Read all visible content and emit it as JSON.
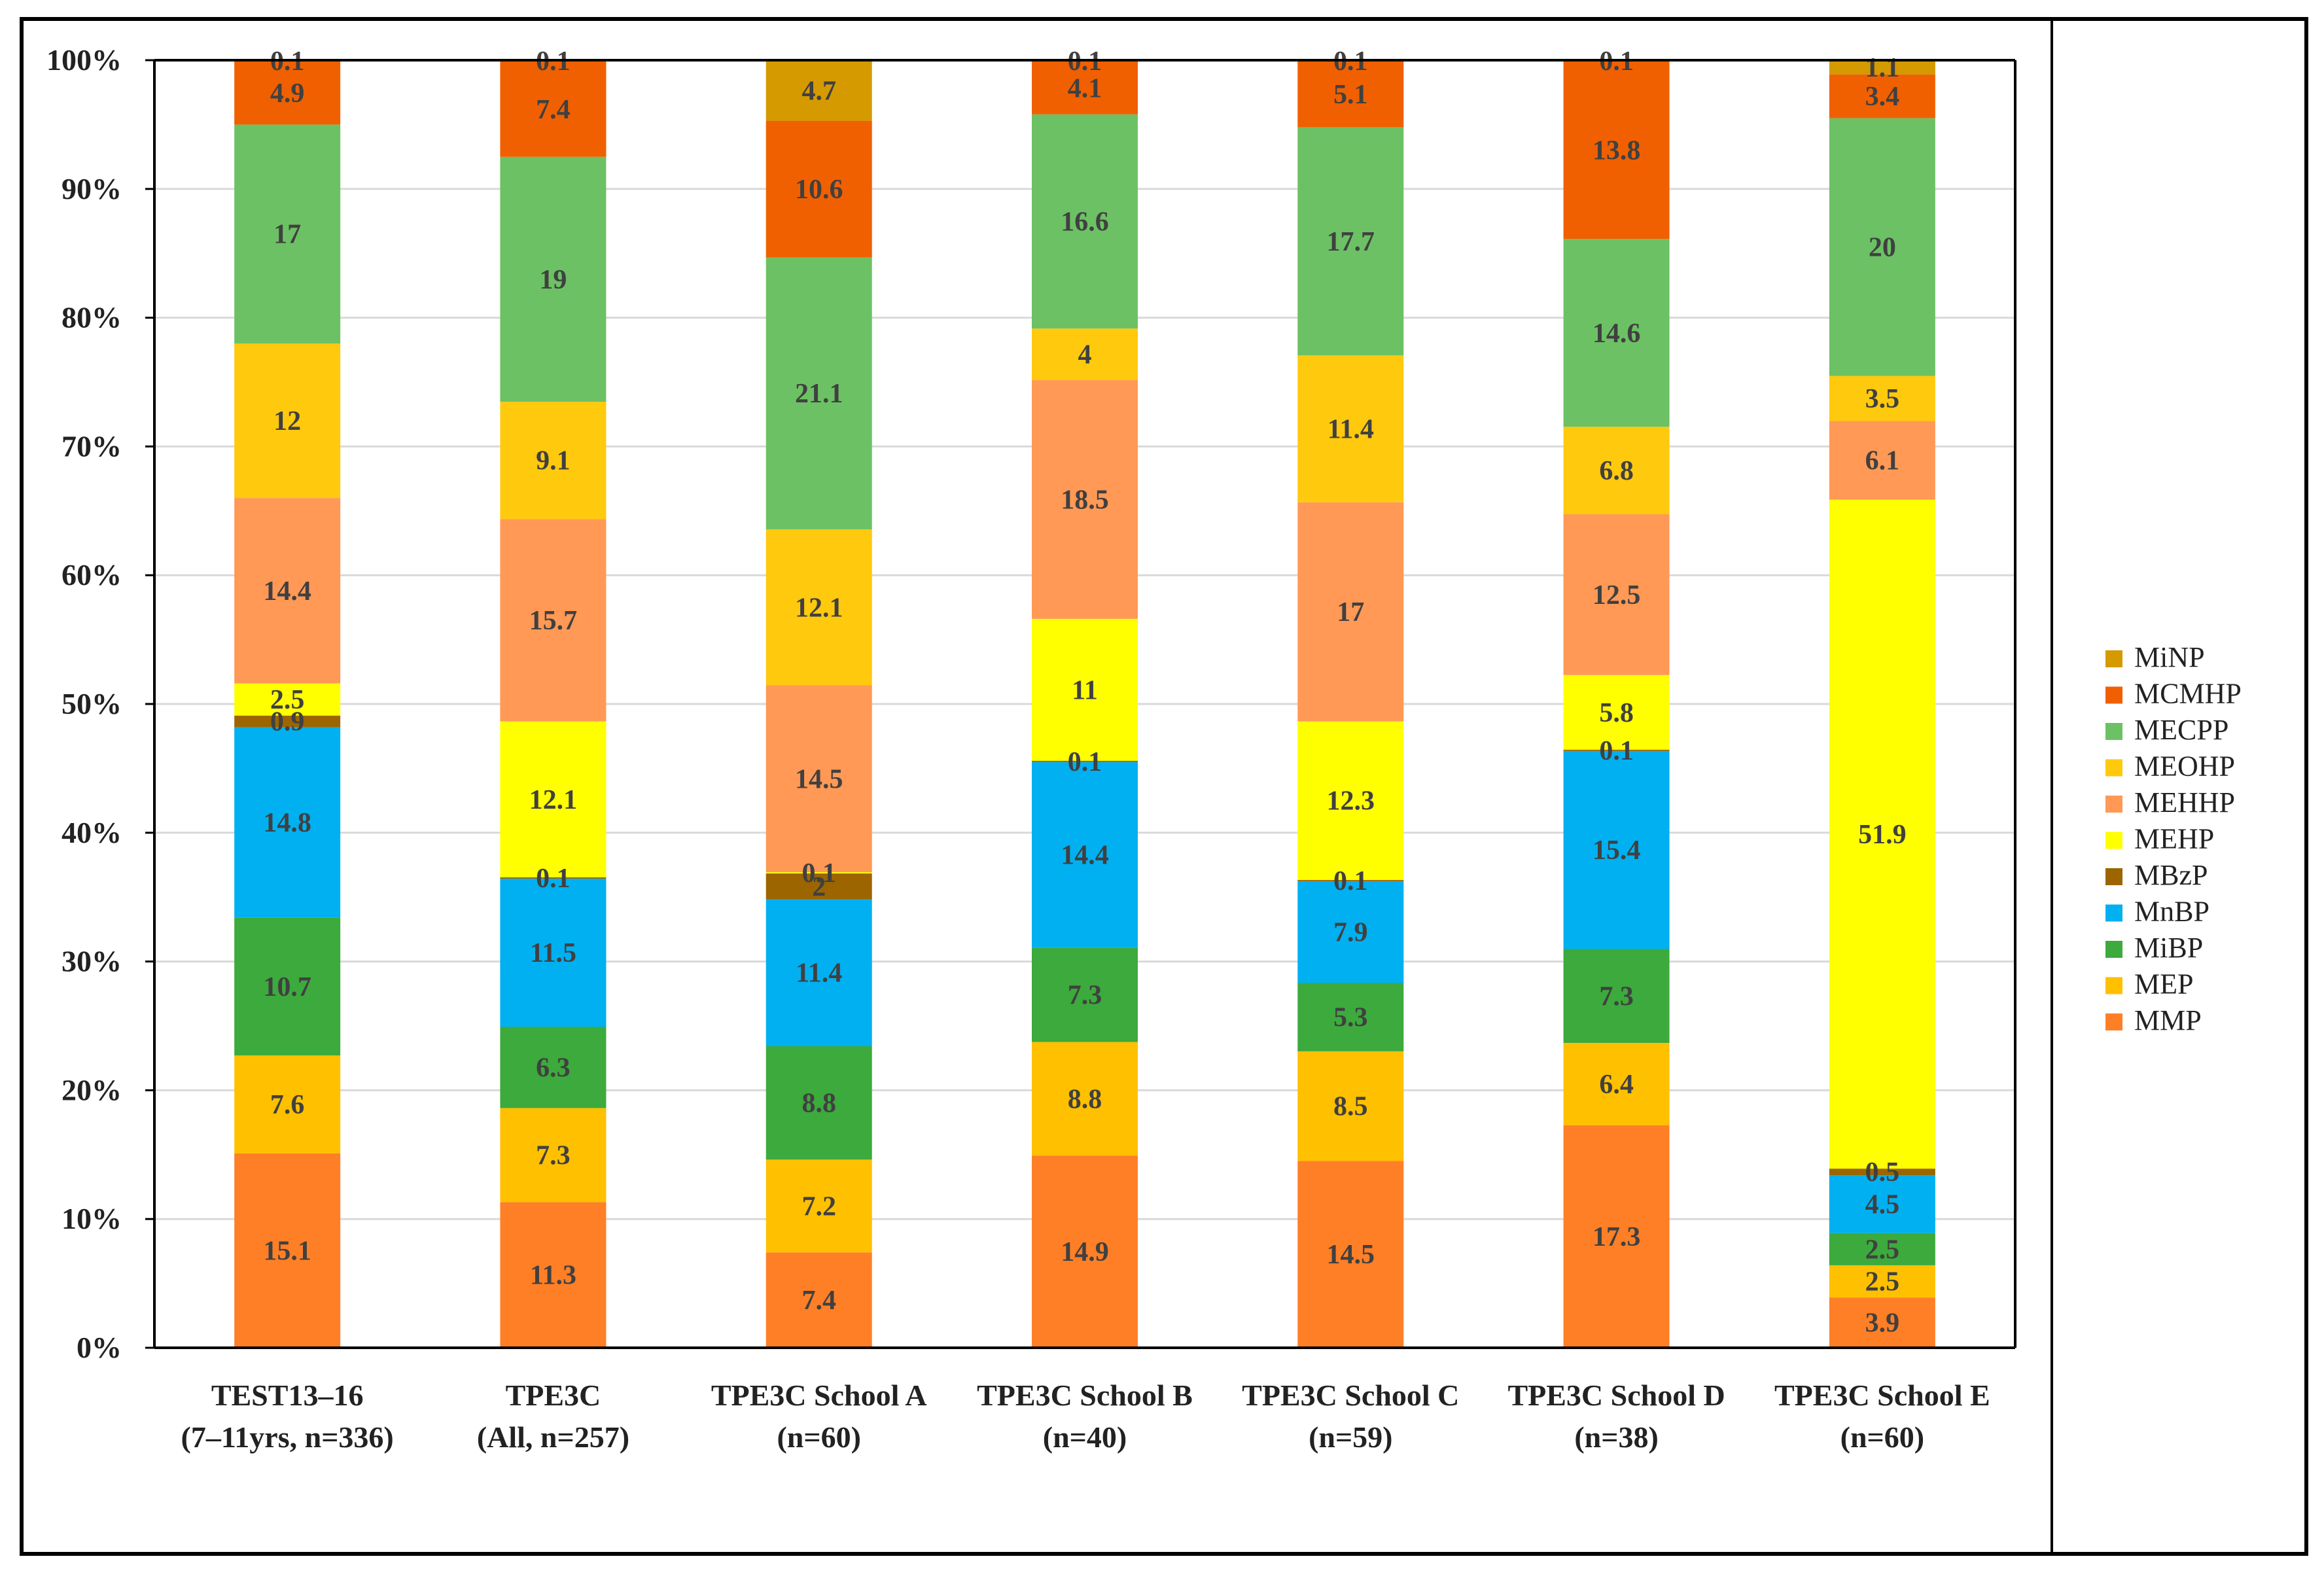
{
  "chart_data": {
    "type": "bar",
    "stacked": true,
    "percent_stacked": true,
    "title": "",
    "xlabel": "",
    "ylabel": "",
    "ylim": [
      0,
      100
    ],
    "yticks": [
      "0%",
      "10%",
      "20%",
      "30%",
      "40%",
      "50%",
      "60%",
      "70%",
      "80%",
      "90%",
      "100%"
    ],
    "grid": true,
    "legend_position": "right",
    "categories": [
      [
        "TEST13–16",
        "(7–11yrs, n=336)"
      ],
      [
        "TPE3C",
        "(All, n=257)"
      ],
      [
        "TPE3C School A",
        "(n=60)"
      ],
      [
        "TPE3C School B",
        "(n=40)"
      ],
      [
        "TPE3C School C",
        "(n=59)"
      ],
      [
        "TPE3C School D",
        "(n=38)"
      ],
      [
        "TPE3C School E",
        "(n=60)"
      ]
    ],
    "series": [
      {
        "name": "MMP",
        "color": "#FF7F27",
        "labels": [
          "15.1",
          "11.3",
          "7.4",
          "14.9",
          "14.5",
          "17.3",
          "3.9"
        ],
        "values": [
          15.1,
          11.3,
          7.4,
          14.9,
          14.5,
          17.3,
          3.9
        ]
      },
      {
        "name": "MEP",
        "color": "#FFC000",
        "labels": [
          "7.6",
          "7.3",
          "7.2",
          "8.8",
          "8.5",
          "6.4",
          "2.5"
        ],
        "values": [
          7.6,
          7.3,
          7.2,
          8.8,
          8.5,
          6.4,
          2.5
        ]
      },
      {
        "name": "MiBP",
        "color": "#3CAA3C",
        "labels": [
          "10.7",
          "6.3",
          "8.8",
          "7.3",
          "5.3",
          "7.3",
          "2.5"
        ],
        "values": [
          10.7,
          6.3,
          8.8,
          7.3,
          5.3,
          7.3,
          2.5
        ]
      },
      {
        "name": "MnBP",
        "color": "#00B0F0",
        "labels": [
          "14.8",
          "11.5",
          "11.4",
          "14.4",
          "7.9",
          "15.4",
          "4.5"
        ],
        "values": [
          14.8,
          11.5,
          11.4,
          14.4,
          7.9,
          15.4,
          4.5
        ]
      },
      {
        "name": "MBzP",
        "color": "#9C6500",
        "labels": [
          "0.9",
          "0.1",
          "2",
          "0.1",
          "0.1",
          "0.1",
          "0.5"
        ],
        "values": [
          0.9,
          0.1,
          2.0,
          0.1,
          0.1,
          0.1,
          0.5
        ]
      },
      {
        "name": "MEHP",
        "color": "#FFFF00",
        "labels": [
          "2.5",
          "12.1",
          "0.1",
          "11",
          "12.3",
          "5.8",
          "51.9"
        ],
        "values": [
          2.5,
          12.1,
          0.1,
          11.0,
          12.3,
          5.8,
          51.9
        ]
      },
      {
        "name": "MEHHP",
        "color": "#FF9955",
        "labels": [
          "14.4",
          "15.7",
          "14.5",
          "18.5",
          "17",
          "12.5",
          "6.1"
        ],
        "values": [
          14.4,
          15.7,
          14.5,
          18.5,
          17.0,
          12.5,
          6.1
        ]
      },
      {
        "name": "MEOHP",
        "color": "#FFC90E",
        "labels": [
          "12",
          "9.1",
          "12.1",
          "4",
          "11.4",
          "6.8",
          "3.5"
        ],
        "values": [
          12.0,
          9.1,
          12.1,
          4.0,
          11.4,
          6.8,
          3.5
        ]
      },
      {
        "name": "MECPP",
        "color": "#6CC164",
        "labels": [
          "17",
          "19",
          "21.1",
          "16.6",
          "17.7",
          "14.6",
          "20"
        ],
        "values": [
          17.0,
          19.0,
          21.1,
          16.6,
          17.7,
          14.6,
          20.0
        ]
      },
      {
        "name": "MCMHP",
        "color": "#F06000",
        "labels": [
          "4.9",
          "7.4",
          "10.6",
          "4.1",
          "5.1",
          "13.8",
          "3.4"
        ],
        "values": [
          4.9,
          7.4,
          10.6,
          4.1,
          5.1,
          13.8,
          3.4
        ]
      },
      {
        "name": "MiNP",
        "color": "#D49A00",
        "labels": [
          "0.1",
          "0.1",
          "4.7",
          "0.1",
          "0.1",
          "0.1",
          "1.1"
        ],
        "values": [
          0.1,
          0.1,
          4.7,
          0.1,
          0.1,
          0.1,
          1.1
        ]
      }
    ]
  }
}
